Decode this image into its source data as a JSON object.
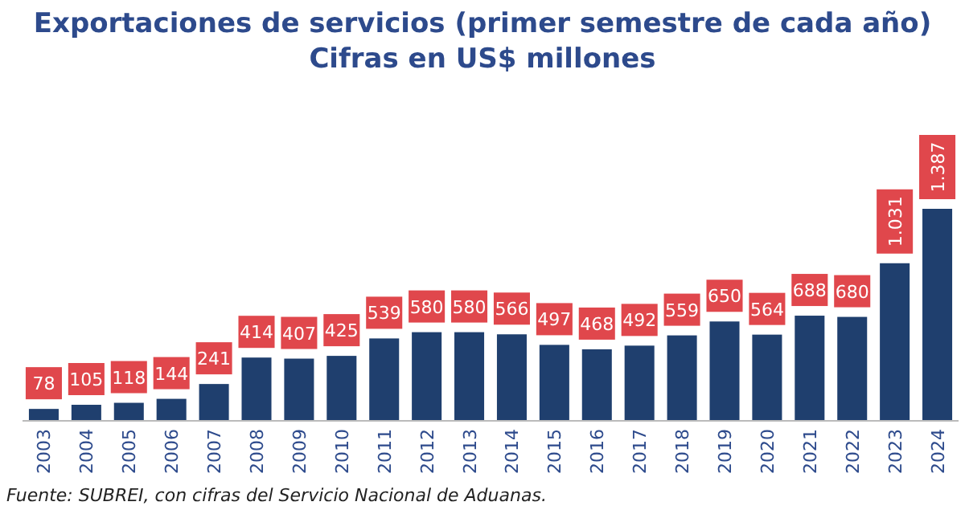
{
  "chart_data": {
    "type": "bar",
    "title": "Exportaciones de servicios (primer semestre de cada año)",
    "subtitle": "Cifras en US$ millones",
    "categories": [
      "2003",
      "2004",
      "2005",
      "2006",
      "2007",
      "2008",
      "2009",
      "2010",
      "2011",
      "2012",
      "2013",
      "2014",
      "2015",
      "2016",
      "2017",
      "2018",
      "2019",
      "2020",
      "2021",
      "2022",
      "2023",
      "2024"
    ],
    "values": [
      78,
      105,
      118,
      144,
      241,
      414,
      407,
      425,
      539,
      580,
      580,
      566,
      497,
      468,
      492,
      559,
      650,
      564,
      688,
      680,
      1031,
      1387
    ],
    "value_labels": [
      "78",
      "105",
      "118",
      "144",
      "241",
      "414",
      "407",
      "425",
      "539",
      "580",
      "580",
      "566",
      "497",
      "468",
      "492",
      "559",
      "650",
      "564",
      "688",
      "680",
      "1.031",
      "1.387"
    ],
    "color": "#1f3f6e",
    "annotations": [
      "Fuente: SUBREI, con cifras del Servicio Nacional de Aduanas."
    ]
  }
}
